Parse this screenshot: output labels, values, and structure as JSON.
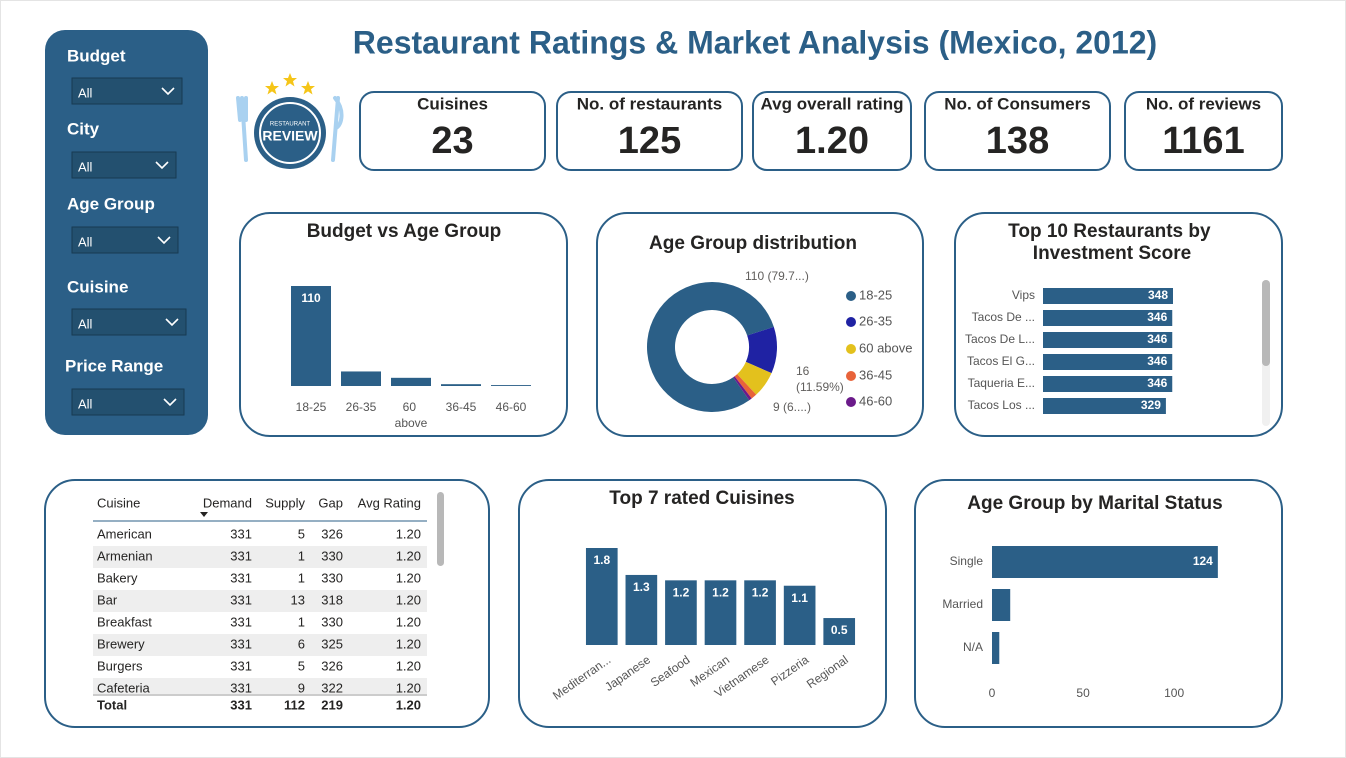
{
  "title": "Restaurant Ratings & Market Analysis (Mexico, 2012)",
  "logo": {
    "lines": [
      "RESTAURANT",
      "REVIEW"
    ]
  },
  "filters": [
    {
      "label": "Budget",
      "value": "All"
    },
    {
      "label": "City",
      "value": "All"
    },
    {
      "label": "Age Group",
      "value": "All"
    },
    {
      "label": "Cuisine",
      "value": "All"
    },
    {
      "label": "Price Range",
      "value": "All"
    }
  ],
  "kpis": [
    {
      "label": "Cuisines",
      "value": "23"
    },
    {
      "label": "No. of restaurants",
      "value": "125"
    },
    {
      "label": "Avg overall rating",
      "value": "1.20"
    },
    {
      "label": "No. of Consumers",
      "value": "138"
    },
    {
      "label": "No. of reviews",
      "value": "1161"
    }
  ],
  "table": {
    "columns": [
      "Cuisine",
      "Demand",
      "Supply",
      "Gap",
      "Avg Rating"
    ],
    "rows": [
      [
        "American",
        "331",
        "5",
        "326",
        "1.20"
      ],
      [
        "Armenian",
        "331",
        "1",
        "330",
        "1.20"
      ],
      [
        "Bakery",
        "331",
        "1",
        "330",
        "1.20"
      ],
      [
        "Bar",
        "331",
        "13",
        "318",
        "1.20"
      ],
      [
        "Breakfast",
        "331",
        "1",
        "330",
        "1.20"
      ],
      [
        "Brewery",
        "331",
        "6",
        "325",
        "1.20"
      ],
      [
        "Burgers",
        "331",
        "5",
        "326",
        "1.20"
      ],
      [
        "Cafeteria",
        "331",
        "9",
        "322",
        "1.20"
      ]
    ],
    "total": [
      "Total",
      "331",
      "112",
      "219",
      "1.20"
    ]
  },
  "chart_data": [
    {
      "type": "bar",
      "title": "Budget vs Age Group",
      "categories": [
        "18-25",
        "26-35",
        "60 above",
        "36-45",
        "46-60"
      ],
      "values": [
        110,
        16,
        9,
        2,
        1
      ],
      "color": "#2b5f87"
    },
    {
      "type": "pie",
      "title": "Age Group distribution",
      "donut": true,
      "categories": [
        "18-25",
        "26-35",
        "60 above",
        "36-45",
        "46-60"
      ],
      "values": [
        110,
        16,
        9,
        2,
        1
      ],
      "value_labels": [
        "110 (79.7...)",
        "16 (11.59%)",
        "9 (6....)",
        null,
        null
      ],
      "colors": [
        "#2b5f87",
        "#1f22a3",
        "#e3c11d",
        "#e8633a",
        "#6b1a8a"
      ]
    },
    {
      "type": "hbar",
      "title": "Top 10 Restaurants by Investment Score",
      "categories": [
        "Vips",
        "Tacos De ...",
        "Tacos De L...",
        "Tacos El G...",
        "Taqueria E...",
        "Tacos Los ..."
      ],
      "values": [
        348,
        346,
        346,
        346,
        346,
        329
      ],
      "color": "#2b5f87"
    },
    {
      "type": "bar",
      "title": "Top 7 rated Cuisines",
      "categories": [
        "Mediterran...",
        "Japanese",
        "Seafood",
        "Mexican",
        "Vietnamese",
        "Pizzeria",
        "Regional"
      ],
      "values": [
        1.8,
        1.3,
        1.2,
        1.2,
        1.2,
        1.1,
        0.5
      ],
      "color": "#2b5f87"
    },
    {
      "type": "hbar",
      "title": "Age Group by Marital Status",
      "categories": [
        "Single",
        "Married",
        "N/A"
      ],
      "values": [
        124,
        10,
        4
      ],
      "color": "#2b5f87",
      "xlim": [
        0,
        140
      ],
      "xticks": [
        0,
        50,
        100
      ]
    }
  ]
}
